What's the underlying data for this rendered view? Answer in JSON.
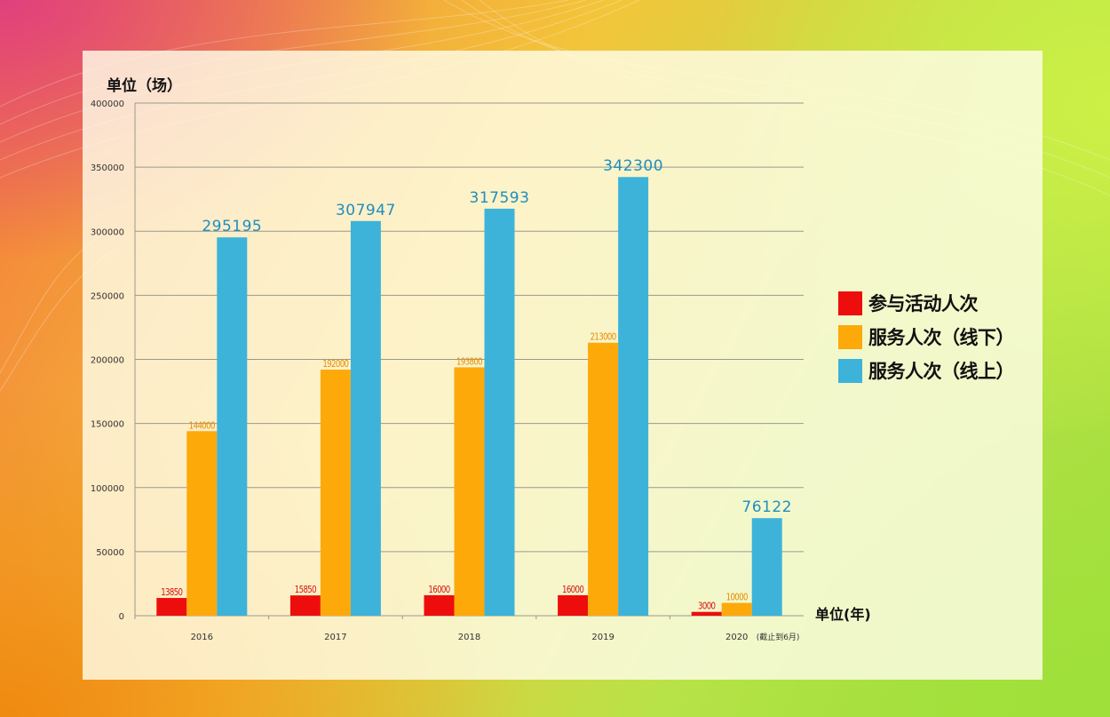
{
  "colors": {
    "participation": "#ee0d0d",
    "offline": "#fda90a",
    "online": "#3db3da",
    "online_label": "#1f8ec0",
    "participation_label": "#d61010",
    "offline_label": "#e88a00"
  },
  "chart_data": {
    "type": "bar",
    "ylabel": "单位（场）",
    "xlabel": "单位(年)",
    "ylim": [
      0,
      400000
    ],
    "yticks": [
      0,
      50000,
      100000,
      150000,
      200000,
      250000,
      300000,
      350000,
      400000
    ],
    "categories": [
      "2016",
      "2017",
      "2018",
      "2019",
      "2020"
    ],
    "category_notes": [
      "",
      "",
      "",
      "",
      "(截止到6月)"
    ],
    "grid": true,
    "legend_position": "right",
    "series": [
      {
        "name": "参与活动人次",
        "values": [
          13850,
          15850,
          16000,
          16000,
          3000
        ]
      },
      {
        "name": "服务人次（线下）",
        "values": [
          144000,
          192000,
          193800,
          213000,
          10000
        ]
      },
      {
        "name": "服务人次（线上）",
        "values": [
          295195,
          307947,
          317593,
          342300,
          76122
        ]
      }
    ]
  }
}
